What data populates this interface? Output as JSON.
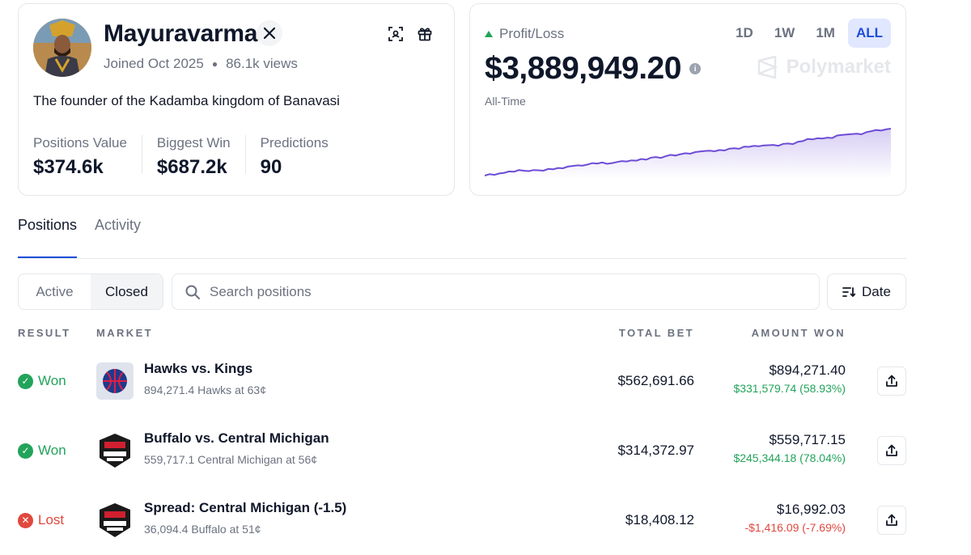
{
  "profile": {
    "name": "Mayuravarma",
    "joined": "Joined Oct 2025",
    "views": "86.1k views",
    "bio": "The founder of the Kadamba kingdom of Banavasi",
    "stats": [
      {
        "label": "Positions Value",
        "value": "$374.6k"
      },
      {
        "label": "Biggest Win",
        "value": "$687.2k"
      },
      {
        "label": "Predictions",
        "value": "90"
      }
    ],
    "icons": [
      "x-logo-icon",
      "qr-scan-icon",
      "gift-icon"
    ]
  },
  "profit_loss": {
    "label": "Profit/Loss",
    "value": "$3,889,949.20",
    "range_label": "All-Time",
    "periods": [
      "1D",
      "1W",
      "1M",
      "ALL"
    ],
    "active_period": "ALL",
    "brand": "Polymarket",
    "sparkline": [
      12,
      13,
      12.5,
      13.5,
      14,
      15,
      14.8,
      16,
      15.5,
      15.2,
      16,
      15.8,
      15.5,
      16.8,
      16.6,
      17.5,
      17.3,
      18.5,
      19,
      19.4,
      19.2,
      20,
      21,
      20.7,
      21.5,
      20.5,
      21,
      21.8,
      22.5,
      22.2,
      23,
      22.8,
      24,
      23.5,
      25,
      25.4,
      24.8,
      26,
      27,
      26.5,
      27.5,
      28.2,
      27.8,
      29,
      29.4,
      29.8,
      30,
      29.6,
      30.5,
      30.2,
      31.5,
      31.8,
      31.4,
      33,
      32.8,
      33.5,
      33.2,
      33.8,
      34,
      34.2,
      33.6,
      35,
      35.2,
      34.8,
      36.5,
      37,
      38.5,
      38.2,
      39,
      38.8,
      39.5,
      39.2,
      41,
      41.4,
      41.8,
      42,
      42.3,
      41.9,
      43.5,
      44.2,
      45,
      44.6,
      45.5,
      46
    ]
  },
  "tabs": [
    {
      "label": "Positions",
      "active": true
    },
    {
      "label": "Activity",
      "active": false
    }
  ],
  "filters": {
    "toggle": [
      "Active",
      "Closed"
    ],
    "active_toggle": "Closed",
    "search_placeholder": "Search positions",
    "sort_label": "Date"
  },
  "table": {
    "headers": {
      "result": "RESULT",
      "market": "MARKET",
      "total_bet": "TOTAL BET",
      "amount_won": "AMOUNT WON"
    },
    "rows": [
      {
        "result": "Won",
        "status": "won",
        "market_icon": "nba-basketball-icon",
        "title": "Hawks vs. Kings",
        "subtitle": "894,271.4 Hawks at 63¢",
        "total_bet": "$562,691.66",
        "amount_won": "$894,271.40",
        "delta": "$331,579.74 (58.93%)",
        "delta_sign": "pos"
      },
      {
        "result": "Won",
        "status": "won",
        "market_icon": "espn-college-football-icon",
        "title": "Buffalo vs. Central Michigan",
        "subtitle": "559,717.1 Central Michigan at 56¢",
        "total_bet": "$314,372.97",
        "amount_won": "$559,717.15",
        "delta": "$245,344.18 (78.04%)",
        "delta_sign": "pos"
      },
      {
        "result": "Lost",
        "status": "lost",
        "market_icon": "espn-college-football-icon",
        "title": "Spread: Central Michigan (-1.5)",
        "subtitle": "36,094.4 Buffalo at 51¢",
        "total_bet": "$18,408.12",
        "amount_won": "$16,992.03",
        "delta": "-$1,416.09 (-7.69%)",
        "delta_sign": "neg"
      }
    ]
  },
  "colors": {
    "won": "#22a35a",
    "lost": "#e0483e",
    "accent": "#1d4ed8",
    "sparkline": "#6d4cd6"
  }
}
